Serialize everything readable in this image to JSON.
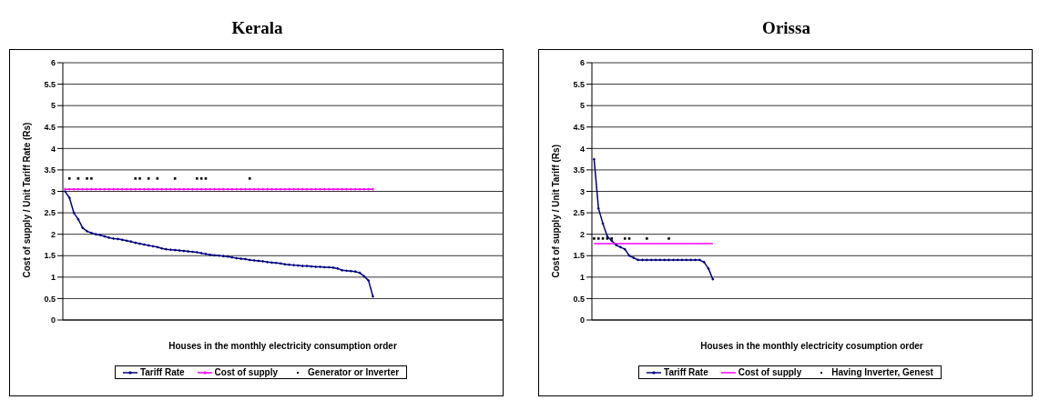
{
  "chart_data": [
    {
      "type": "line",
      "title": "Kerala",
      "xlabel": "Houses in the monthly electricity consumption order",
      "ylabel": "Cost of supply / Unit Tariff Rate (Rs)",
      "ylim": [
        0,
        6
      ],
      "yticks": [
        0,
        0.5,
        1,
        1.5,
        2,
        2.5,
        3,
        3.5,
        4,
        4.5,
        5,
        5.5,
        6
      ],
      "grid": "y",
      "legend": "bottom",
      "categories": [
        null,
        null,
        null,
        null,
        null,
        null,
        null,
        null,
        null,
        null,
        null,
        null,
        null,
        null,
        null,
        null,
        null,
        null,
        null,
        null,
        null,
        null,
        null,
        null,
        null,
        null,
        null,
        null,
        null,
        null,
        null,
        null,
        null,
        null,
        null,
        null,
        null,
        null,
        null,
        null,
        null,
        null,
        null,
        null,
        null,
        null,
        null,
        null,
        null,
        null,
        null,
        null,
        null,
        null,
        null,
        null,
        null,
        null,
        null,
        null,
        null,
        null,
        null,
        null,
        null,
        null,
        null,
        null,
        null,
        null,
        null,
        null,
        null,
        null,
        null,
        null,
        null,
        null,
        null,
        null,
        null,
        null,
        null,
        null,
        null,
        null,
        null,
        null,
        null,
        null,
        null,
        null,
        null,
        null,
        null,
        null,
        null,
        null,
        null,
        null
      ],
      "series": [
        {
          "name": "Tariff Rate",
          "type": "line",
          "marker": "diamond",
          "color": "#000080",
          "values": [
            3.0,
            2.85,
            2.5,
            2.35,
            2.15,
            2.07,
            2.03,
            2.0,
            1.98,
            1.95,
            1.92,
            1.9,
            1.89,
            1.87,
            1.85,
            1.83,
            1.8,
            1.78,
            1.76,
            1.74,
            1.72,
            1.7,
            1.67,
            1.65,
            1.64,
            1.63,
            1.62,
            1.61,
            1.6,
            1.59,
            1.58,
            1.56,
            1.54,
            1.52,
            1.51,
            1.5,
            1.49,
            1.48,
            1.46,
            1.44,
            1.43,
            1.42,
            1.4,
            1.39,
            1.38,
            1.37,
            1.35,
            1.34,
            1.33,
            1.32,
            1.3,
            1.29,
            1.28,
            1.27,
            1.26,
            1.26,
            1.25,
            1.24,
            1.24,
            1.23,
            1.23,
            1.22,
            1.2,
            1.16,
            1.15,
            1.14,
            1.13,
            1.1,
            1.02,
            0.92,
            0.55,
            null,
            null,
            null,
            null,
            null,
            null,
            null,
            null,
            null,
            null,
            null,
            null,
            null,
            null,
            null,
            null,
            null,
            null,
            null,
            null,
            null,
            null,
            null,
            null,
            null,
            null,
            null,
            null,
            null
          ]
        },
        {
          "name": "Cost of supply",
          "type": "line",
          "marker": "diamond",
          "color": "#ff00ff",
          "values": [
            3.05,
            3.05,
            3.05,
            3.05,
            3.05,
            3.05,
            3.05,
            3.05,
            3.05,
            3.05,
            3.05,
            3.05,
            3.05,
            3.05,
            3.05,
            3.05,
            3.05,
            3.05,
            3.05,
            3.05,
            3.05,
            3.05,
            3.05,
            3.05,
            3.05,
            3.05,
            3.05,
            3.05,
            3.05,
            3.05,
            3.05,
            3.05,
            3.05,
            3.05,
            3.05,
            3.05,
            3.05,
            3.05,
            3.05,
            3.05,
            3.05,
            3.05,
            3.05,
            3.05,
            3.05,
            3.05,
            3.05,
            3.05,
            3.05,
            3.05,
            3.05,
            3.05,
            3.05,
            3.05,
            3.05,
            3.05,
            3.05,
            3.05,
            3.05,
            3.05,
            3.05,
            3.05,
            3.05,
            3.05,
            3.05,
            3.05,
            3.05,
            3.05,
            3.05,
            3.05,
            3.05,
            null,
            null,
            null,
            null,
            null,
            null,
            null,
            null,
            null,
            null,
            null,
            null,
            null,
            null,
            null,
            null,
            null,
            null,
            null,
            null,
            null,
            null,
            null,
            null,
            null,
            null,
            null,
            null,
            null
          ]
        },
        {
          "name": "Generator or Inverter",
          "type": "scatter",
          "marker": "square",
          "color": "#000000",
          "values": [
            null,
            3.3,
            null,
            3.3,
            null,
            3.3,
            3.3,
            null,
            null,
            null,
            null,
            null,
            null,
            null,
            null,
            null,
            3.3,
            3.3,
            null,
            3.3,
            null,
            3.3,
            null,
            null,
            null,
            3.3,
            null,
            null,
            null,
            null,
            3.3,
            3.3,
            3.3,
            null,
            null,
            null,
            null,
            null,
            null,
            null,
            null,
            null,
            3.3,
            null,
            null,
            null,
            null,
            null,
            null,
            null,
            null,
            null,
            null,
            null,
            null,
            null,
            null,
            null,
            null,
            null,
            null,
            null,
            null,
            null,
            null,
            null,
            null,
            null,
            null,
            null,
            null,
            null,
            null,
            null,
            null,
            null,
            null,
            null,
            null,
            null,
            null,
            null,
            null,
            null,
            null,
            null,
            null,
            null,
            null,
            null,
            null,
            null,
            null,
            null,
            null,
            null,
            null,
            null,
            null,
            null
          ]
        }
      ]
    },
    {
      "type": "line",
      "title": "Orissa",
      "xlabel": "Houses in the monthly electricity cosumption order",
      "ylabel": "Cost of supply / Unit Tariff (Rs)",
      "ylim": [
        0,
        6
      ],
      "yticks": [
        0,
        0.5,
        1,
        1.5,
        2,
        2.5,
        3,
        3.5,
        4,
        4.5,
        5,
        5.5,
        6
      ],
      "grid": "y",
      "legend": "bottom",
      "categories": [
        null,
        null,
        null,
        null,
        null,
        null,
        null,
        null,
        null,
        null,
        null,
        null,
        null,
        null,
        null,
        null,
        null,
        null,
        null,
        null,
        null,
        null,
        null,
        null,
        null,
        null,
        null,
        null,
        null,
        null,
        null,
        null,
        null,
        null,
        null,
        null,
        null,
        null,
        null,
        null,
        null,
        null,
        null,
        null,
        null,
        null,
        null,
        null,
        null,
        null,
        null,
        null,
        null,
        null,
        null,
        null,
        null,
        null,
        null,
        null,
        null,
        null,
        null,
        null,
        null,
        null,
        null,
        null,
        null,
        null,
        null,
        null,
        null,
        null,
        null,
        null,
        null,
        null,
        null,
        null,
        null,
        null,
        null,
        null,
        null,
        null,
        null,
        null,
        null,
        null,
        null,
        null,
        null,
        null,
        null,
        null,
        null,
        null,
        null,
        null
      ],
      "series": [
        {
          "name": "Tariff Rate",
          "type": "line",
          "marker": "diamond",
          "color": "#000080",
          "values": [
            3.75,
            2.6,
            2.25,
            1.95,
            1.85,
            1.75,
            1.7,
            1.65,
            1.5,
            1.45,
            1.4,
            1.4,
            1.4,
            1.4,
            1.4,
            1.4,
            1.4,
            1.4,
            1.4,
            1.4,
            1.4,
            1.4,
            1.4,
            1.4,
            1.4,
            1.35,
            1.2,
            0.95,
            null,
            null,
            null,
            null,
            null,
            null,
            null,
            null,
            null,
            null,
            null,
            null,
            null,
            null,
            null,
            null,
            null,
            null,
            null,
            null,
            null,
            null,
            null,
            null,
            null,
            null,
            null,
            null,
            null,
            null,
            null,
            null,
            null,
            null,
            null,
            null,
            null,
            null,
            null,
            null,
            null,
            null,
            null,
            null,
            null,
            null,
            null,
            null,
            null,
            null,
            null,
            null,
            null,
            null,
            null,
            null,
            null,
            null,
            null,
            null,
            null,
            null,
            null,
            null,
            null,
            null,
            null,
            null,
            null,
            null,
            null,
            null
          ]
        },
        {
          "name": "Cost of supply",
          "type": "line",
          "color": "#ff00ff",
          "values": [
            1.78,
            1.78,
            1.78,
            1.78,
            1.78,
            1.78,
            1.78,
            1.78,
            1.78,
            1.78,
            1.78,
            1.78,
            1.78,
            1.78,
            1.78,
            1.78,
            1.78,
            1.78,
            1.78,
            1.78,
            1.78,
            1.78,
            1.78,
            1.78,
            1.78,
            1.78,
            1.78,
            1.78,
            null,
            null,
            null,
            null,
            null,
            null,
            null,
            null,
            null,
            null,
            null,
            null,
            null,
            null,
            null,
            null,
            null,
            null,
            null,
            null,
            null,
            null,
            null,
            null,
            null,
            null,
            null,
            null,
            null,
            null,
            null,
            null,
            null,
            null,
            null,
            null,
            null,
            null,
            null,
            null,
            null,
            null,
            null,
            null,
            null,
            null,
            null,
            null,
            null,
            null,
            null,
            null,
            null,
            null,
            null,
            null,
            null,
            null,
            null,
            null,
            null,
            null,
            null,
            null,
            null,
            null,
            null,
            null,
            null,
            null,
            null,
            null
          ]
        },
        {
          "name": "Having Inverter, Genest",
          "type": "scatter",
          "marker": "square",
          "color": "#000000",
          "values": [
            1.9,
            1.9,
            1.9,
            1.9,
            1.9,
            null,
            null,
            1.9,
            1.9,
            null,
            null,
            null,
            1.9,
            null,
            null,
            null,
            null,
            1.9,
            null,
            null,
            null,
            null,
            null,
            null,
            null,
            null,
            null,
            null,
            null,
            null,
            null,
            null,
            null,
            null,
            null,
            null,
            null,
            null,
            null,
            null,
            null,
            null,
            null,
            null,
            null,
            null,
            null,
            null,
            null,
            null,
            null,
            null,
            null,
            null,
            null,
            null,
            null,
            null,
            null,
            null,
            null,
            null,
            null,
            null,
            null,
            null,
            null,
            null,
            null,
            null,
            null,
            null,
            null,
            null,
            null,
            null,
            null,
            null,
            null,
            null,
            null,
            null,
            null,
            null,
            null,
            null,
            null,
            null,
            null,
            null,
            null,
            null,
            null,
            null,
            null,
            null,
            null,
            null,
            null,
            null
          ]
        }
      ]
    }
  ]
}
